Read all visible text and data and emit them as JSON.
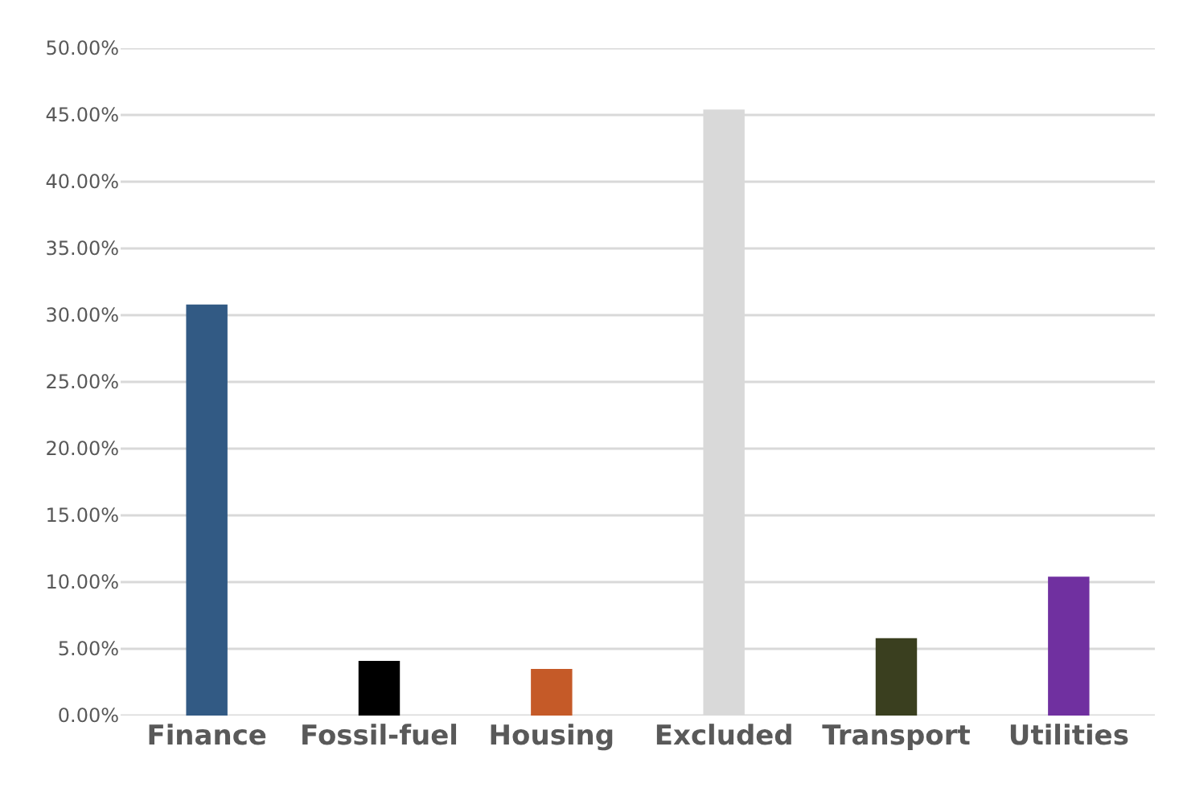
{
  "chart_data": {
    "type": "bar",
    "categories": [
      "Finance",
      "Fossil-fuel",
      "Housing",
      "Excluded",
      "Transport",
      "Utilities"
    ],
    "values": [
      30.8,
      4.1,
      3.5,
      45.4,
      5.8,
      10.4
    ],
    "colors": [
      "#325a84",
      "#000000",
      "#c55a28",
      "#d9d9d9",
      "#3a3f1f",
      "#7030a0"
    ],
    "ylim": [
      0,
      50
    ],
    "yticks": [
      {
        "value": 0,
        "label": "0.00%"
      },
      {
        "value": 5,
        "label": "5.00%"
      },
      {
        "value": 10,
        "label": "10.00%"
      },
      {
        "value": 15,
        "label": "15.00%"
      },
      {
        "value": 20,
        "label": "20.00%"
      },
      {
        "value": 25,
        "label": "25.00%"
      },
      {
        "value": 30,
        "label": "30.00%"
      },
      {
        "value": 35,
        "label": "35.00%"
      },
      {
        "value": 40,
        "label": "40.00%"
      },
      {
        "value": 45,
        "label": "45.00%"
      },
      {
        "value": 50,
        "label": "50.00%"
      }
    ],
    "grid": "y"
  }
}
